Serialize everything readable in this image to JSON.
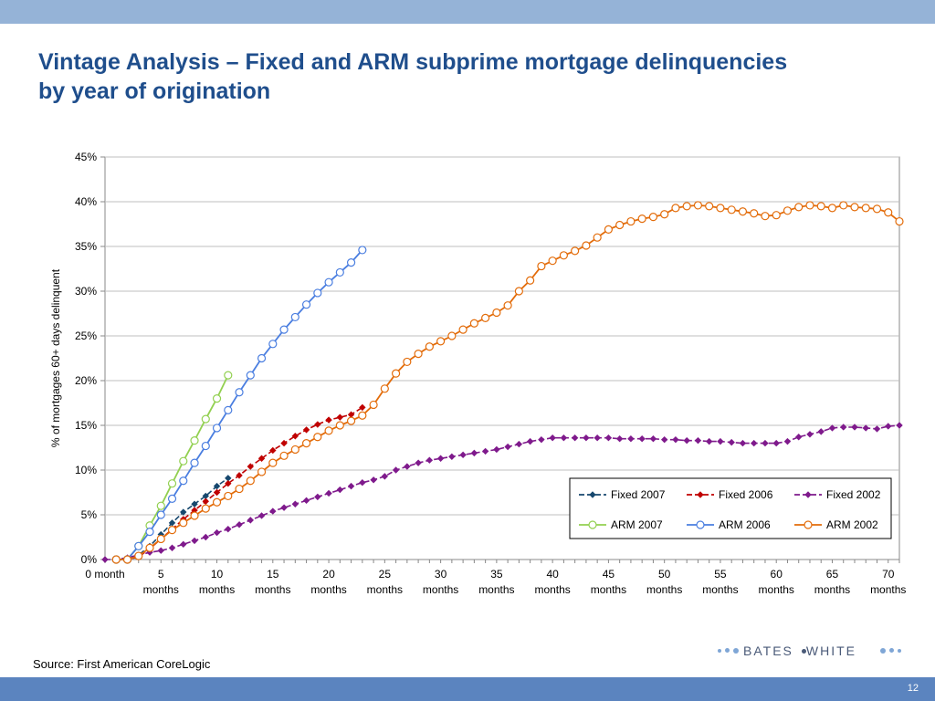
{
  "slide": {
    "title_line1": "Vintage Analysis – Fixed and ARM subprime mortgage delinquencies",
    "title_line2": "by year of origination",
    "source": "Source: First American CoreLogic",
    "page_number": "12",
    "logo_left": "BATES",
    "logo_right": "WHITE"
  },
  "colors": {
    "top_band": "#95b3d7",
    "bottom_band": "#5b84bf",
    "title": "#1f4e8c",
    "fixed2007": "#17486e",
    "fixed2006": "#c00000",
    "fixed2002": "#7f1a8c",
    "arm2007": "#92d050",
    "arm2006": "#4a7ee0",
    "arm2002": "#e36c0a"
  },
  "chart_data": {
    "type": "line",
    "title": "",
    "xlabel": "",
    "ylabel": "% of mortgages 60+ days delinquent",
    "xlim": [
      0,
      71
    ],
    "ylim": [
      0,
      45
    ],
    "y_ticks": [
      0,
      5,
      10,
      15,
      20,
      25,
      30,
      35,
      40,
      45
    ],
    "y_tick_labels": [
      "0%",
      "5%",
      "10%",
      "15%",
      "20%",
      "25%",
      "30%",
      "35%",
      "40%",
      "45%"
    ],
    "x_ticks": [
      0,
      5,
      10,
      15,
      20,
      25,
      30,
      35,
      40,
      45,
      50,
      55,
      60,
      65,
      70
    ],
    "x_tick_labels": [
      [
        "0 month"
      ],
      [
        "5",
        "months"
      ],
      [
        "10",
        "months"
      ],
      [
        "15",
        "months"
      ],
      [
        "20",
        "months"
      ],
      [
        "25",
        "months"
      ],
      [
        "30",
        "months"
      ],
      [
        "35",
        "months"
      ],
      [
        "40",
        "months"
      ],
      [
        "45",
        "months"
      ],
      [
        "50",
        "months"
      ],
      [
        "55",
        "months"
      ],
      [
        "60",
        "months"
      ],
      [
        "65",
        "months"
      ],
      [
        "70",
        "months"
      ]
    ],
    "grid": "horizontal",
    "legend_position": "bottom-right",
    "series": [
      {
        "name": "Fixed 2007",
        "color": "#17486e",
        "marker": "diamond",
        "x0": 1,
        "values": [
          0,
          0,
          0.5,
          1.5,
          2.8,
          4.1,
          5.3,
          6.2,
          7.1,
          8.2,
          9.1
        ]
      },
      {
        "name": "Fixed 2006",
        "color": "#c00000",
        "marker": "diamond",
        "x0": 1,
        "values": [
          0,
          0,
          0.3,
          1.2,
          2.3,
          3.4,
          4.5,
          5.5,
          6.5,
          7.5,
          8.5,
          9.4,
          10.4,
          11.3,
          12.2,
          13.0,
          13.8,
          14.5,
          15.1,
          15.6,
          15.9,
          16.2,
          17.0
        ]
      },
      {
        "name": "Fixed 2002",
        "color": "#7f1a8c",
        "marker": "diamond",
        "x0": 0,
        "values": [
          0,
          0,
          0.2,
          0.5,
          0.8,
          1.0,
          1.3,
          1.7,
          2.1,
          2.5,
          3.0,
          3.4,
          3.9,
          4.4,
          4.9,
          5.4,
          5.8,
          6.2,
          6.6,
          7.0,
          7.4,
          7.8,
          8.2,
          8.6,
          8.9,
          9.3,
          10.0,
          10.4,
          10.8,
          11.1,
          11.3,
          11.5,
          11.7,
          11.9,
          12.1,
          12.3,
          12.6,
          12.9,
          13.2,
          13.4,
          13.6,
          13.6,
          13.6,
          13.6,
          13.6,
          13.6,
          13.5,
          13.5,
          13.5,
          13.5,
          13.4,
          13.4,
          13.3,
          13.3,
          13.2,
          13.2,
          13.1,
          13.0,
          13.0,
          13.0,
          13.0,
          13.2,
          13.7,
          14.0,
          14.3,
          14.7,
          14.8,
          14.8,
          14.7,
          14.6,
          14.9,
          15.0
        ]
      },
      {
        "name": "ARM 2007",
        "color": "#92d050",
        "marker": "circle",
        "x0": 1,
        "values": [
          0,
          0,
          1.5,
          3.8,
          6.0,
          8.5,
          11.0,
          13.3,
          15.7,
          18.0,
          20.6
        ]
      },
      {
        "name": "ARM 2006",
        "color": "#4a7ee0",
        "marker": "circle",
        "x0": 1,
        "values": [
          0,
          0,
          1.5,
          3.1,
          5.0,
          6.8,
          8.8,
          10.8,
          12.7,
          14.7,
          16.7,
          18.7,
          20.6,
          22.5,
          24.1,
          25.7,
          27.1,
          28.5,
          29.8,
          31.0,
          32.1,
          33.2,
          34.6
        ]
      },
      {
        "name": "ARM 2002",
        "color": "#e36c0a",
        "marker": "circle",
        "x0": 1,
        "values": [
          0,
          0,
          0.4,
          1.3,
          2.3,
          3.3,
          4.1,
          4.9,
          5.7,
          6.4,
          7.1,
          7.9,
          8.8,
          9.8,
          10.8,
          11.6,
          12.3,
          13.0,
          13.7,
          14.4,
          15.0,
          15.5,
          16.1,
          17.3,
          19.1,
          20.8,
          22.1,
          23.0,
          23.8,
          24.4,
          25.0,
          25.7,
          26.4,
          27.0,
          27.6,
          28.4,
          30.0,
          31.2,
          32.8,
          33.4,
          34.0,
          34.5,
          35.1,
          36.0,
          36.9,
          37.4,
          37.8,
          38.1,
          38.3,
          38.6,
          39.3,
          39.5,
          39.6,
          39.5,
          39.3,
          39.1,
          38.9,
          38.7,
          38.4,
          38.5,
          39.0,
          39.4,
          39.6,
          39.5,
          39.3,
          39.6,
          39.4,
          39.3,
          39.2,
          38.8,
          37.8
        ]
      }
    ],
    "legend": [
      [
        "Fixed 2007",
        "Fixed 2006",
        "Fixed 2002"
      ],
      [
        "ARM 2007",
        "ARM 2006",
        "ARM 2002"
      ]
    ]
  }
}
